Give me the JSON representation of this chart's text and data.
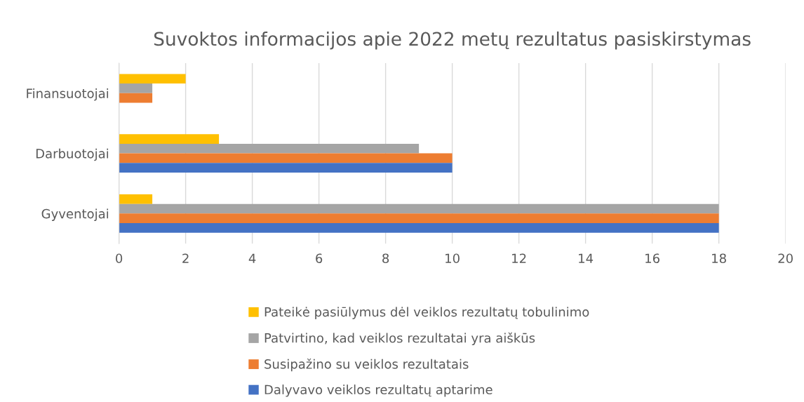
{
  "chart_data": {
    "type": "bar",
    "orientation": "horizontal",
    "title": "Suvoktos informacijos apie 2022 metų rezultatus pasiskirstymas",
    "categories": [
      "Finansuotojai",
      "Darbuotojai",
      "Gyventojai"
    ],
    "series": [
      {
        "name": "Pateikė pasiūlymus dėl veiklos rezultatų tobulinimo",
        "color": "#ffc000",
        "values": [
          2,
          3,
          1
        ]
      },
      {
        "name": "Patvirtino, kad veiklos rezultatai yra aiškūs",
        "color": "#a5a5a5",
        "values": [
          1,
          9,
          18
        ]
      },
      {
        "name": "Susipažino su veiklos rezultatais",
        "color": "#ed7d31",
        "values": [
          1,
          10,
          18
        ]
      },
      {
        "name": "Dalyvavo veiklos rezultatų aptarime",
        "color": "#4472c4",
        "values": [
          0,
          10,
          18
        ]
      }
    ],
    "xlim": [
      0,
      20
    ],
    "xticks": [
      0,
      2,
      4,
      6,
      8,
      10,
      12,
      14,
      16,
      18,
      20
    ],
    "grid": "x",
    "legend": "bottom"
  }
}
